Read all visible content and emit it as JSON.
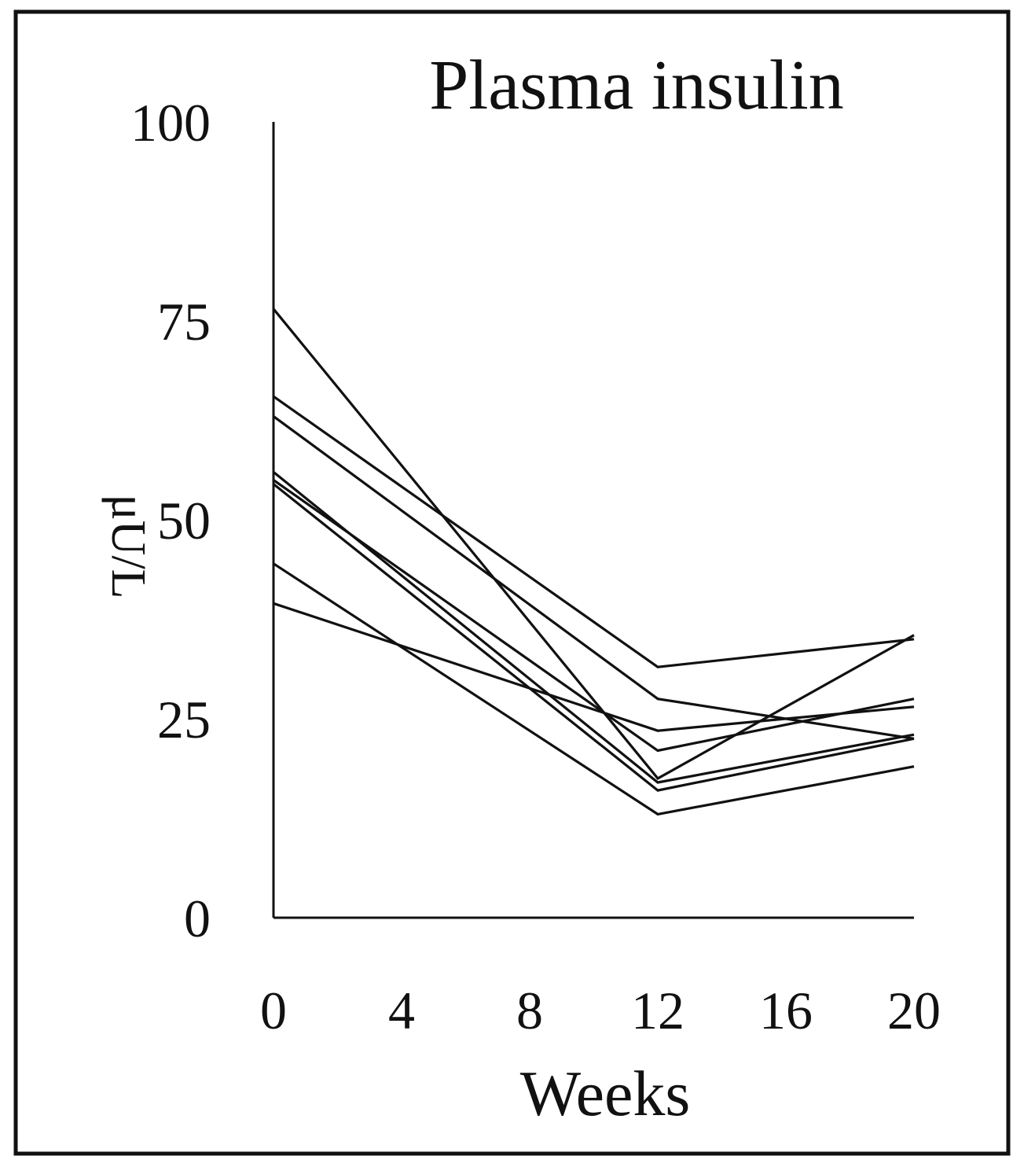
{
  "chart_data": {
    "type": "line",
    "title": "Plasma insulin",
    "xlabel": "Weeks",
    "ylabel": "μU/L",
    "x": [
      0,
      12,
      20
    ],
    "xticks": [
      "0",
      "4",
      "8",
      "12",
      "16",
      "20"
    ],
    "xtick_values": [
      0,
      4,
      8,
      12,
      16,
      20
    ],
    "yticks": [
      "0",
      "25",
      "50",
      "75",
      "100"
    ],
    "ytick_values": [
      0,
      25,
      50,
      75,
      100
    ],
    "xlim": [
      0,
      20
    ],
    "ylim": [
      0,
      100
    ],
    "grid": false,
    "legend": "none",
    "line_color": "#111111",
    "series": [
      {
        "values": [
          76.5,
          17.5,
          35.5
        ]
      },
      {
        "values": [
          65.5,
          31.5,
          35.0
        ]
      },
      {
        "values": [
          63.0,
          27.5,
          22.5
        ]
      },
      {
        "values": [
          56.0,
          17.0,
          23.0
        ]
      },
      {
        "values": [
          55.0,
          21.0,
          27.5
        ]
      },
      {
        "values": [
          54.5,
          16.0,
          22.5
        ]
      },
      {
        "values": [
          44.5,
          13.0,
          19.0
        ]
      },
      {
        "values": [
          39.5,
          23.5,
          26.5
        ]
      }
    ]
  }
}
